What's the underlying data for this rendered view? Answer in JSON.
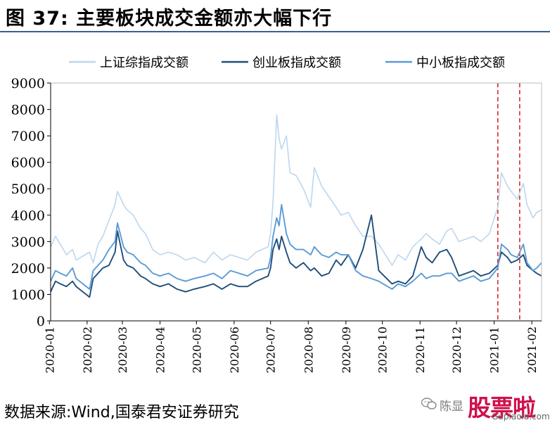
{
  "title": "图 37:  主要板块成交金额亦大幅下行",
  "source": "数据来源:Wind,国泰君安证券研究",
  "watermark": {
    "author": "陈显",
    "brand": "股票啦",
    "url": "Gupiaola.com",
    "icon": "wechat-icon"
  },
  "colors": {
    "sh": "#bcd6ee",
    "cyb": "#1f4e79",
    "zxb": "#5b9bd5",
    "marker": "#d62c2c",
    "axis": "#000000"
  },
  "chart_data": {
    "type": "line",
    "title": "",
    "xlabel": "",
    "ylabel": "",
    "ylim": [
      0,
      9000
    ],
    "yticks": [
      "0",
      "1000",
      "2000",
      "3000",
      "4000",
      "5000",
      "6000",
      "7000",
      "8000",
      "9000"
    ],
    "xlim": [
      "2020-01-02",
      "2021-02-09"
    ],
    "xticks": [
      "2020-01",
      "2020-02",
      "2020-03",
      "2020-04",
      "2020-05",
      "2020-06",
      "2020-07",
      "2020-08",
      "2020-09",
      "2020-10",
      "2020-11",
      "2020-12",
      "2021-01",
      "2021-02"
    ],
    "legend_position": "top",
    "grid": false,
    "reference_lines": [
      {
        "x": "2021-01-04",
        "style": "dashed",
        "color": "#d62c2c"
      },
      {
        "x": "2021-01-22",
        "style": "dashed",
        "color": "#d62c2c"
      }
    ],
    "series": [
      {
        "name": "上证综指成交额",
        "x": [
          "2020-01-02",
          "2020-01-06",
          "2020-01-10",
          "2020-01-15",
          "2020-01-20",
          "2020-01-23",
          "2020-02-03",
          "2020-02-06",
          "2020-02-10",
          "2020-02-14",
          "2020-02-19",
          "2020-02-24",
          "2020-02-26",
          "2020-03-02",
          "2020-03-05",
          "2020-03-10",
          "2020-03-16",
          "2020-03-20",
          "2020-03-26",
          "2020-04-01",
          "2020-04-08",
          "2020-04-15",
          "2020-04-22",
          "2020-04-29",
          "2020-05-08",
          "2020-05-15",
          "2020-05-22",
          "2020-05-29",
          "2020-06-05",
          "2020-06-12",
          "2020-06-19",
          "2020-06-29",
          "2020-07-01",
          "2020-07-03",
          "2020-07-06",
          "2020-07-08",
          "2020-07-10",
          "2020-07-14",
          "2020-07-17",
          "2020-07-22",
          "2020-07-28",
          "2020-08-03",
          "2020-08-06",
          "2020-08-12",
          "2020-08-18",
          "2020-08-24",
          "2020-08-28",
          "2020-09-03",
          "2020-09-09",
          "2020-09-15",
          "2020-09-22",
          "2020-09-28",
          "2020-10-09",
          "2020-10-14",
          "2020-10-20",
          "2020-10-26",
          "2020-11-02",
          "2020-11-06",
          "2020-11-11",
          "2020-11-17",
          "2020-11-23",
          "2020-11-27",
          "2020-12-03",
          "2020-12-09",
          "2020-12-15",
          "2020-12-21",
          "2020-12-28",
          "2021-01-04",
          "2021-01-07",
          "2021-01-12",
          "2021-01-15",
          "2021-01-20",
          "2021-01-25",
          "2021-01-28",
          "2021-02-02",
          "2021-02-05",
          "2021-02-09"
        ],
        "values": [
          2800,
          3200,
          2900,
          2500,
          2700,
          2300,
          2600,
          2200,
          2900,
          3200,
          3800,
          4400,
          4900,
          4400,
          4200,
          4000,
          3500,
          3300,
          2700,
          2500,
          2600,
          2500,
          2300,
          2400,
          2200,
          2600,
          2300,
          2500,
          2400,
          2300,
          2600,
          2800,
          3300,
          4500,
          7800,
          6900,
          6500,
          7000,
          5600,
          5500,
          5000,
          4300,
          5800,
          5100,
          4700,
          4300,
          4000,
          4100,
          3600,
          3200,
          3200,
          2900,
          2100,
          2500,
          2300,
          2800,
          3100,
          3300,
          3100,
          2900,
          3400,
          3500,
          3000,
          3100,
          3200,
          3000,
          3300,
          4300,
          5600,
          5100,
          4900,
          4600,
          5200,
          4400,
          3900,
          4100,
          4200
        ]
      },
      {
        "name": "创业板指成交额",
        "x": [
          "2020-01-02",
          "2020-01-06",
          "2020-01-10",
          "2020-01-15",
          "2020-01-20",
          "2020-01-23",
          "2020-02-03",
          "2020-02-06",
          "2020-02-10",
          "2020-02-14",
          "2020-02-19",
          "2020-02-24",
          "2020-02-26",
          "2020-03-02",
          "2020-03-05",
          "2020-03-10",
          "2020-03-16",
          "2020-03-20",
          "2020-03-26",
          "2020-04-01",
          "2020-04-08",
          "2020-04-15",
          "2020-04-22",
          "2020-04-29",
          "2020-05-08",
          "2020-05-15",
          "2020-05-22",
          "2020-05-29",
          "2020-06-05",
          "2020-06-12",
          "2020-06-19",
          "2020-06-29",
          "2020-07-01",
          "2020-07-03",
          "2020-07-06",
          "2020-07-08",
          "2020-07-10",
          "2020-07-14",
          "2020-07-17",
          "2020-07-22",
          "2020-07-28",
          "2020-08-03",
          "2020-08-06",
          "2020-08-12",
          "2020-08-18",
          "2020-08-24",
          "2020-08-28",
          "2020-09-03",
          "2020-09-09",
          "2020-09-15",
          "2020-09-22",
          "2020-09-28",
          "2020-10-09",
          "2020-10-14",
          "2020-10-20",
          "2020-10-26",
          "2020-11-02",
          "2020-11-06",
          "2020-11-11",
          "2020-11-17",
          "2020-11-23",
          "2020-11-27",
          "2020-12-03",
          "2020-12-09",
          "2020-12-15",
          "2020-12-21",
          "2020-12-28",
          "2021-01-04",
          "2021-01-07",
          "2021-01-12",
          "2021-01-15",
          "2021-01-20",
          "2021-01-25",
          "2021-01-28",
          "2021-02-02",
          "2021-02-05",
          "2021-02-09"
        ],
        "values": [
          1100,
          1500,
          1400,
          1300,
          1500,
          1300,
          900,
          1600,
          1800,
          2000,
          2100,
          2600,
          3400,
          2300,
          2100,
          2000,
          1700,
          1600,
          1400,
          1300,
          1400,
          1200,
          1100,
          1200,
          1300,
          1400,
          1200,
          1400,
          1300,
          1300,
          1500,
          1700,
          2000,
          2700,
          3100,
          2700,
          3200,
          2600,
          2200,
          2000,
          2200,
          1900,
          2000,
          1700,
          1800,
          2300,
          2100,
          2500,
          2000,
          2700,
          4000,
          1900,
          1400,
          1500,
          1400,
          1700,
          2800,
          2400,
          2200,
          2600,
          2700,
          2400,
          1700,
          1800,
          1900,
          1700,
          1800,
          2100,
          2600,
          2400,
          2200,
          2300,
          2500,
          2100,
          1900,
          1800,
          1700
        ]
      },
      {
        "name": "中小板指成交额",
        "x": [
          "2020-01-02",
          "2020-01-06",
          "2020-01-10",
          "2020-01-15",
          "2020-01-20",
          "2020-01-23",
          "2020-02-03",
          "2020-02-06",
          "2020-02-10",
          "2020-02-14",
          "2020-02-19",
          "2020-02-24",
          "2020-02-26",
          "2020-03-02",
          "2020-03-05",
          "2020-03-10",
          "2020-03-16",
          "2020-03-20",
          "2020-03-26",
          "2020-04-01",
          "2020-04-08",
          "2020-04-15",
          "2020-04-22",
          "2020-04-29",
          "2020-05-08",
          "2020-05-15",
          "2020-05-22",
          "2020-05-29",
          "2020-06-05",
          "2020-06-12",
          "2020-06-19",
          "2020-06-29",
          "2020-07-01",
          "2020-07-03",
          "2020-07-06",
          "2020-07-08",
          "2020-07-10",
          "2020-07-14",
          "2020-07-17",
          "2020-07-22",
          "2020-07-28",
          "2020-08-03",
          "2020-08-06",
          "2020-08-12",
          "2020-08-18",
          "2020-08-24",
          "2020-08-28",
          "2020-09-03",
          "2020-09-09",
          "2020-09-15",
          "2020-09-22",
          "2020-09-28",
          "2020-10-09",
          "2020-10-14",
          "2020-10-20",
          "2020-10-26",
          "2020-11-02",
          "2020-11-06",
          "2020-11-11",
          "2020-11-17",
          "2020-11-23",
          "2020-11-27",
          "2020-12-03",
          "2020-12-09",
          "2020-12-15",
          "2020-12-21",
          "2020-12-28",
          "2021-01-04",
          "2021-01-07",
          "2021-01-12",
          "2021-01-15",
          "2021-01-20",
          "2021-01-25",
          "2021-01-28",
          "2021-02-02",
          "2021-02-05",
          "2021-02-09"
        ],
        "values": [
          1500,
          1900,
          1800,
          1700,
          2000,
          1600,
          1200,
          1900,
          2100,
          2300,
          2700,
          3000,
          3700,
          2800,
          2600,
          2500,
          2200,
          2100,
          1800,
          1700,
          1800,
          1600,
          1500,
          1600,
          1700,
          1800,
          1600,
          1900,
          1800,
          1700,
          1900,
          2000,
          2400,
          3200,
          3900,
          3600,
          4400,
          3300,
          2900,
          2700,
          2700,
          2500,
          2800,
          2500,
          2400,
          2600,
          2500,
          2500,
          1900,
          1700,
          1600,
          1500,
          1200,
          1400,
          1300,
          1500,
          1800,
          1600,
          1700,
          1700,
          1800,
          1800,
          1500,
          1600,
          1700,
          1500,
          1600,
          2000,
          2900,
          2700,
          2500,
          2400,
          2900,
          2200,
          1900,
          2000,
          2200
        ]
      }
    ]
  }
}
